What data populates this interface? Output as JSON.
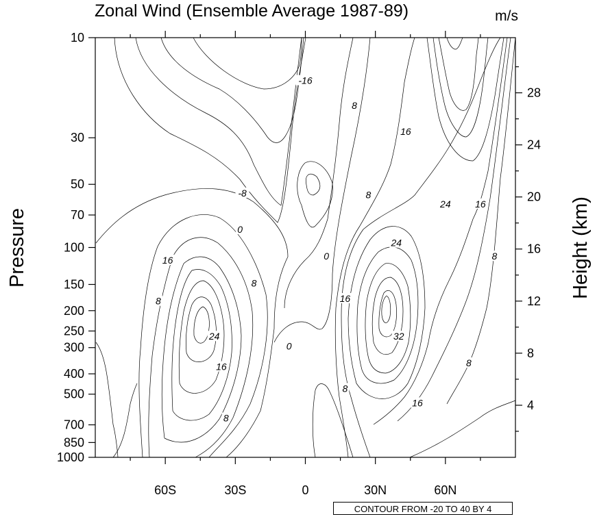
{
  "chart_data": {
    "type": "contour",
    "title": "Zonal Wind (Ensemble Average 1987-89)",
    "units": "m/s",
    "xlabel": "",
    "ylabel": "Pressure",
    "y2label": "Height (km)",
    "x_ticks": [
      "60S",
      "30S",
      "0",
      "30N",
      "60N"
    ],
    "y_ticks": [
      "10",
      "30",
      "50",
      "70",
      "100",
      "150",
      "200",
      "250",
      "300",
      "400",
      "500",
      "700",
      "850",
      "1000"
    ],
    "y2_ticks": [
      "28",
      "24",
      "20",
      "16",
      "12",
      "8",
      "4"
    ],
    "contour_info": "CONTOUR FROM -20 TO 40 BY 4",
    "contour_labels": [
      {
        "text": "-16",
        "lat": 0,
        "p": 16
      },
      {
        "text": "8",
        "lat": 21,
        "p": 21
      },
      {
        "text": "16",
        "lat": 43,
        "p": 28
      },
      {
        "text": "-8",
        "lat": -27,
        "p": 55
      },
      {
        "text": "8",
        "lat": 27,
        "p": 56
      },
      {
        "text": "24",
        "lat": 60,
        "p": 62
      },
      {
        "text": "16",
        "lat": 75,
        "p": 62
      },
      {
        "text": "0",
        "lat": -28,
        "p": 82
      },
      {
        "text": "24",
        "lat": 39,
        "p": 95
      },
      {
        "text": "0",
        "lat": 9,
        "p": 110
      },
      {
        "text": "16",
        "lat": -59,
        "p": 115
      },
      {
        "text": "8",
        "lat": 81,
        "p": 110
      },
      {
        "text": "8",
        "lat": -22,
        "p": 148
      },
      {
        "text": "16",
        "lat": 17,
        "p": 175
      },
      {
        "text": "8",
        "lat": -63,
        "p": 180
      },
      {
        "text": "32",
        "lat": 40,
        "p": 265
      },
      {
        "text": "24",
        "lat": -39,
        "p": 265
      },
      {
        "text": "0",
        "lat": -7,
        "p": 295
      },
      {
        "text": "16",
        "lat": -36,
        "p": 370
      },
      {
        "text": "8",
        "lat": 70,
        "p": 355
      },
      {
        "text": "8",
        "lat": 17,
        "p": 470
      },
      {
        "text": "16",
        "lat": 48,
        "p": 550
      },
      {
        "text": "8",
        "lat": -34,
        "p": 650
      }
    ]
  }
}
